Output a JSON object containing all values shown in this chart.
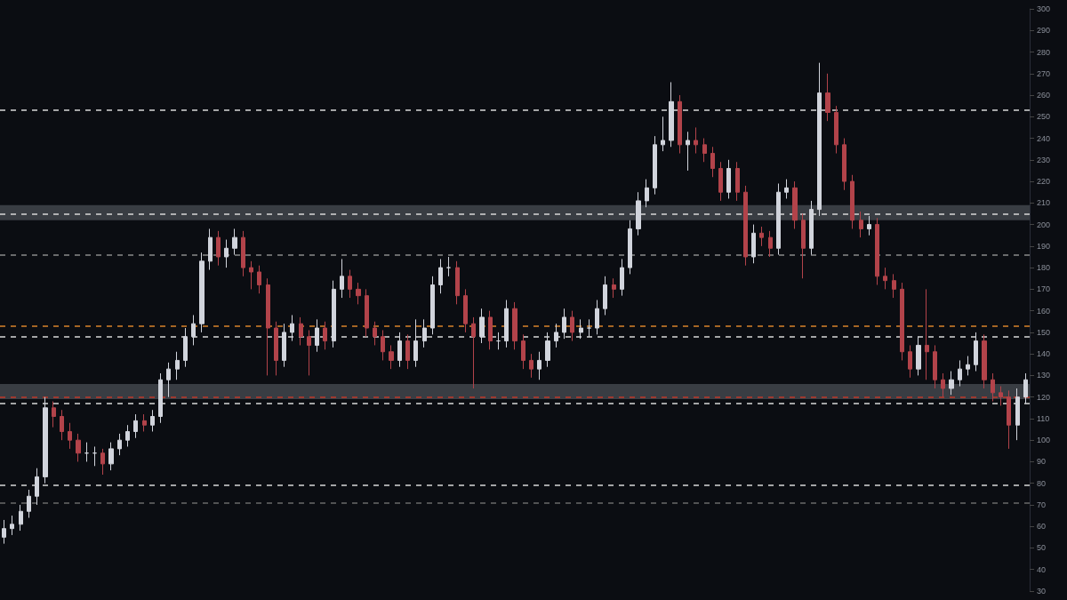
{
  "chart_data": {
    "type": "candlestick",
    "categories": [
      null,
      null,
      null,
      null,
      null,
      null,
      null,
      null,
      null,
      null,
      null,
      null,
      null,
      null,
      null,
      null,
      null,
      null,
      null,
      null,
      null,
      null,
      null,
      null,
      null,
      null,
      null,
      null,
      null,
      null,
      null,
      null,
      null,
      null,
      null,
      null,
      null,
      null,
      null,
      null,
      null,
      null,
      null,
      null,
      null,
      null,
      null,
      null,
      null,
      null,
      null,
      null,
      null,
      null,
      null,
      null,
      null,
      null,
      null,
      null,
      null,
      null,
      null,
      null,
      null,
      null,
      null,
      null,
      null,
      null,
      null,
      null,
      null,
      null,
      null,
      null,
      null,
      null,
      null,
      null,
      null,
      null,
      null,
      null,
      null,
      null,
      null,
      null,
      null,
      null,
      null,
      null,
      null,
      null,
      null,
      null,
      null,
      null,
      null,
      null,
      null,
      null,
      null,
      null,
      null,
      null,
      null,
      null,
      null,
      null,
      null,
      null,
      null,
      null,
      null,
      null,
      null,
      null,
      null,
      null,
      null,
      null,
      null,
      null,
      null
    ],
    "ohlc": [
      [
        55,
        63,
        52,
        59
      ],
      [
        59,
        65,
        56,
        61
      ],
      [
        61,
        70,
        58,
        67
      ],
      [
        67,
        77,
        64,
        74
      ],
      [
        74,
        87,
        70,
        83
      ],
      [
        83,
        120,
        80,
        115
      ],
      [
        115,
        118,
        106,
        111
      ],
      [
        111,
        114,
        100,
        104
      ],
      [
        104,
        108,
        96,
        100
      ],
      [
        100,
        103,
        90,
        94
      ],
      [
        94,
        99,
        90,
        94
      ],
      [
        94,
        97,
        88,
        94
      ],
      [
        94,
        96,
        84,
        89
      ],
      [
        89,
        99,
        86,
        96
      ],
      [
        96,
        103,
        93,
        100
      ],
      [
        100,
        107,
        97,
        104
      ],
      [
        104,
        112,
        101,
        109
      ],
      [
        109,
        112,
        104,
        107
      ],
      [
        107,
        114,
        104,
        111
      ],
      [
        111,
        131,
        108,
        128
      ],
      [
        128,
        136,
        120,
        133
      ],
      [
        133,
        141,
        128,
        137
      ],
      [
        137,
        152,
        134,
        148
      ],
      [
        148,
        158,
        144,
        154
      ],
      [
        154,
        187,
        150,
        183
      ],
      [
        183,
        198,
        179,
        194
      ],
      [
        194,
        197,
        181,
        185
      ],
      [
        185,
        193,
        180,
        189
      ],
      [
        189,
        198,
        186,
        194
      ],
      [
        194,
        197,
        176,
        180
      ],
      [
        180,
        183,
        170,
        178
      ],
      [
        178,
        181,
        168,
        172
      ],
      [
        172,
        175,
        130,
        152
      ],
      [
        152,
        155,
        130,
        137
      ],
      [
        137,
        154,
        134,
        150
      ],
      [
        150,
        158,
        146,
        154
      ],
      [
        154,
        157,
        144,
        148
      ],
      [
        148,
        151,
        130,
        144
      ],
      [
        144,
        156,
        141,
        152
      ],
      [
        152,
        155,
        142,
        146
      ],
      [
        146,
        174,
        143,
        170
      ],
      [
        170,
        184,
        166,
        176
      ],
      [
        176,
        179,
        166,
        170
      ],
      [
        170,
        173,
        163,
        167
      ],
      [
        167,
        170,
        148,
        152
      ],
      [
        152,
        155,
        144,
        148
      ],
      [
        148,
        151,
        137,
        141
      ],
      [
        141,
        144,
        133,
        137
      ],
      [
        137,
        150,
        134,
        146
      ],
      [
        146,
        149,
        133,
        137
      ],
      [
        137,
        156,
        134,
        146
      ],
      [
        146,
        156,
        143,
        152
      ],
      [
        152,
        176,
        149,
        172
      ],
      [
        172,
        184,
        168,
        180
      ],
      [
        180,
        185,
        176,
        180
      ],
      [
        180,
        183,
        163,
        167
      ],
      [
        167,
        170,
        150,
        154
      ],
      [
        154,
        157,
        124,
        148
      ],
      [
        148,
        161,
        145,
        157
      ],
      [
        157,
        160,
        142,
        146
      ],
      [
        146,
        150,
        142,
        146
      ],
      [
        146,
        165,
        143,
        161
      ],
      [
        161,
        164,
        142,
        146
      ],
      [
        146,
        149,
        133,
        137
      ],
      [
        137,
        140,
        129,
        133
      ],
      [
        133,
        141,
        128,
        137
      ],
      [
        137,
        150,
        134,
        146
      ],
      [
        146,
        154,
        143,
        150
      ],
      [
        150,
        161,
        147,
        157
      ],
      [
        157,
        160,
        146,
        150
      ],
      [
        150,
        156,
        147,
        152
      ],
      [
        152,
        156,
        148,
        152
      ],
      [
        152,
        165,
        149,
        161
      ],
      [
        161,
        176,
        158,
        172
      ],
      [
        172,
        175,
        166,
        170
      ],
      [
        170,
        184,
        167,
        180
      ],
      [
        180,
        202,
        177,
        198
      ],
      [
        198,
        215,
        195,
        211
      ],
      [
        211,
        221,
        208,
        217
      ],
      [
        217,
        241,
        214,
        237
      ],
      [
        237,
        250,
        234,
        239
      ],
      [
        239,
        266,
        236,
        257
      ],
      [
        257,
        260,
        233,
        237
      ],
      [
        237,
        243,
        225,
        239
      ],
      [
        239,
        245,
        233,
        237
      ],
      [
        237,
        240,
        229,
        233
      ],
      [
        233,
        236,
        222,
        226
      ],
      [
        226,
        229,
        211,
        215
      ],
      [
        215,
        230,
        212,
        226
      ],
      [
        226,
        229,
        211,
        215
      ],
      [
        215,
        218,
        181,
        185
      ],
      [
        185,
        200,
        182,
        196
      ],
      [
        196,
        199,
        190,
        194
      ],
      [
        194,
        197,
        185,
        189
      ],
      [
        189,
        219,
        186,
        215
      ],
      [
        215,
        221,
        212,
        217
      ],
      [
        217,
        220,
        198,
        202
      ],
      [
        202,
        205,
        175,
        189
      ],
      [
        189,
        211,
        186,
        207
      ],
      [
        207,
        275,
        204,
        261
      ],
      [
        261,
        270,
        248,
        252
      ],
      [
        252,
        255,
        233,
        237
      ],
      [
        237,
        240,
        216,
        220
      ],
      [
        220,
        223,
        198,
        202
      ],
      [
        202,
        206,
        194,
        198
      ],
      [
        198,
        204,
        195,
        200
      ],
      [
        200,
        203,
        172,
        176
      ],
      [
        176,
        180,
        170,
        174
      ],
      [
        174,
        177,
        166,
        170
      ],
      [
        170,
        173,
        137,
        141
      ],
      [
        141,
        144,
        129,
        133
      ],
      [
        133,
        148,
        130,
        144
      ],
      [
        144,
        170,
        128,
        141
      ],
      [
        141,
        144,
        124,
        128
      ],
      [
        128,
        131,
        120,
        124
      ],
      [
        124,
        132,
        121,
        128
      ],
      [
        128,
        137,
        125,
        133
      ],
      [
        133,
        139,
        130,
        135
      ],
      [
        135,
        150,
        132,
        146
      ],
      [
        146,
        149,
        124,
        128
      ],
      [
        128,
        131,
        118,
        122
      ],
      [
        122,
        125,
        116,
        120
      ],
      [
        120,
        123,
        96,
        107
      ],
      [
        107,
        124,
        100,
        120
      ],
      [
        120,
        131,
        117,
        128
      ]
    ],
    "colors": [
      "#d1d4dc",
      "#d1d4dc",
      "#d1d4dc",
      "#d1d4dc",
      "#d1d4dc",
      "#d1d4dc",
      "#b2434a",
      "#b2434a",
      "#b2434a",
      "#b2434a",
      "#d1d4dc",
      "#d1d4dc",
      "#b2434a",
      "#d1d4dc",
      "#d1d4dc",
      "#d1d4dc",
      "#d1d4dc",
      "#b2434a",
      "#d1d4dc",
      "#d1d4dc",
      "#d1d4dc",
      "#d1d4dc",
      "#d1d4dc",
      "#d1d4dc",
      "#d1d4dc",
      "#d1d4dc",
      "#b2434a",
      "#d1d4dc",
      "#d1d4dc",
      "#b2434a",
      "#b2434a",
      "#b2434a",
      "#b2434a",
      "#b2434a",
      "#d1d4dc",
      "#d1d4dc",
      "#b2434a",
      "#b2434a",
      "#d1d4dc",
      "#b2434a",
      "#d1d4dc",
      "#d1d4dc",
      "#b2434a",
      "#b2434a",
      "#b2434a",
      "#b2434a",
      "#b2434a",
      "#b2434a",
      "#d1d4dc",
      "#b2434a",
      "#d1d4dc",
      "#d1d4dc",
      "#d1d4dc",
      "#d1d4dc",
      "#d1d4dc",
      "#b2434a",
      "#b2434a",
      "#b2434a",
      "#d1d4dc",
      "#b2434a",
      "#d1d4dc",
      "#d1d4dc",
      "#b2434a",
      "#b2434a",
      "#b2434a",
      "#d1d4dc",
      "#d1d4dc",
      "#d1d4dc",
      "#d1d4dc",
      "#b2434a",
      "#d1d4dc",
      "#d1d4dc",
      "#d1d4dc",
      "#d1d4dc",
      "#b2434a",
      "#d1d4dc",
      "#d1d4dc",
      "#d1d4dc",
      "#d1d4dc",
      "#d1d4dc",
      "#d1d4dc",
      "#d1d4dc",
      "#b2434a",
      "#d1d4dc",
      "#b2434a",
      "#b2434a",
      "#b2434a",
      "#b2434a",
      "#d1d4dc",
      "#b2434a",
      "#b2434a",
      "#d1d4dc",
      "#b2434a",
      "#b2434a",
      "#d1d4dc",
      "#d1d4dc",
      "#b2434a",
      "#b2434a",
      "#d1d4dc",
      "#d1d4dc",
      "#b2434a",
      "#b2434a",
      "#b2434a",
      "#b2434a",
      "#b2434a",
      "#d1d4dc",
      "#b2434a",
      "#b2434a",
      "#b2434a",
      "#b2434a",
      "#b2434a",
      "#d1d4dc",
      "#b2434a",
      "#b2434a",
      "#b2434a",
      "#d1d4dc",
      "#d1d4dc",
      "#d1d4dc",
      "#d1d4dc",
      "#b2434a",
      "#b2434a",
      "#b2434a",
      "#b2434a",
      "#d1d4dc",
      "#d1d4dc"
    ],
    "ylim": [
      30,
      300
    ],
    "yticks": [
      30,
      40,
      50,
      60,
      70,
      80,
      90,
      100,
      110,
      120,
      130,
      140,
      150,
      160,
      170,
      180,
      190,
      200,
      210,
      220,
      230,
      240,
      250,
      260,
      270,
      280,
      290,
      300
    ],
    "tick_labels": "y",
    "grid": false,
    "ref_lines": [
      {
        "axis": "y",
        "value": 253,
        "color": "#d8d8d8",
        "line_style": "dashed"
      },
      {
        "axis": "y",
        "value": 205,
        "color": "#d8d8d8",
        "line_style": "dashed"
      },
      {
        "axis": "y",
        "value": 186,
        "color": "#8a8a8a",
        "line_style": "dashed"
      },
      {
        "axis": "y",
        "value": 153,
        "color": "#d9822b",
        "line_style": "dashed"
      },
      {
        "axis": "y",
        "value": 148,
        "color": "#d8d8d8",
        "line_style": "dashed"
      },
      {
        "axis": "y",
        "value": 120,
        "color": "#c0392b",
        "line_style": "dashed"
      },
      {
        "axis": "y",
        "value": 117,
        "color": "#d8d8d8",
        "line_style": "dashed"
      },
      {
        "axis": "y",
        "value": 79,
        "color": "#d8d8d8",
        "line_style": "dashed"
      },
      {
        "axis": "y",
        "value": 71,
        "color": "#6a6a6a",
        "line_style": "dashed"
      }
    ],
    "bands": [
      {
        "axis": "y",
        "from": 202,
        "to": 209,
        "color": "#4a4d54"
      },
      {
        "axis": "y",
        "from": 119,
        "to": 126,
        "color": "#4a4d54"
      }
    ]
  }
}
